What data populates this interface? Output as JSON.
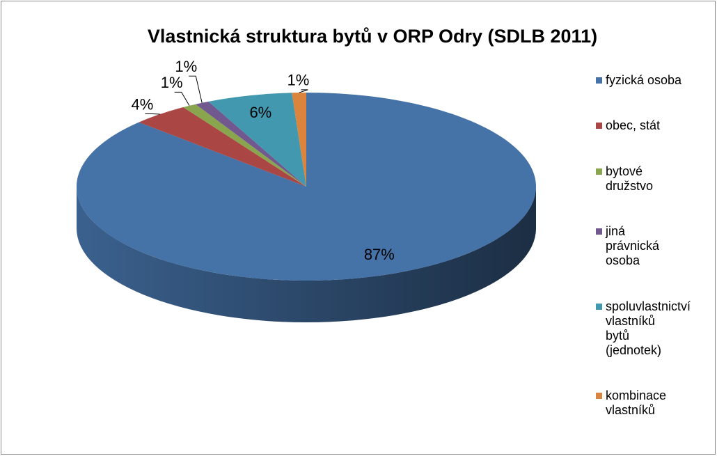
{
  "chart_data": {
    "type": "pie",
    "title": "Vlastnická struktura bytů v ORP Odry (SDLB 2011)",
    "categories": [
      "fyzická osoba",
      "obec, stát",
      "bytové družstvo",
      "jiná právnická osoba",
      "spoluvlastnictví vlastníků bytů (jednotek)",
      "kombinace vlastníků"
    ],
    "values": [
      87,
      4,
      1,
      1,
      6,
      1
    ],
    "value_labels": [
      "87%",
      "4%",
      "1%",
      "1%",
      "6%",
      "1%"
    ],
    "colors": [
      "#4572a7",
      "#aa4643",
      "#89a54e",
      "#71588f",
      "#4198af",
      "#db843d"
    ],
    "legend": "right"
  }
}
